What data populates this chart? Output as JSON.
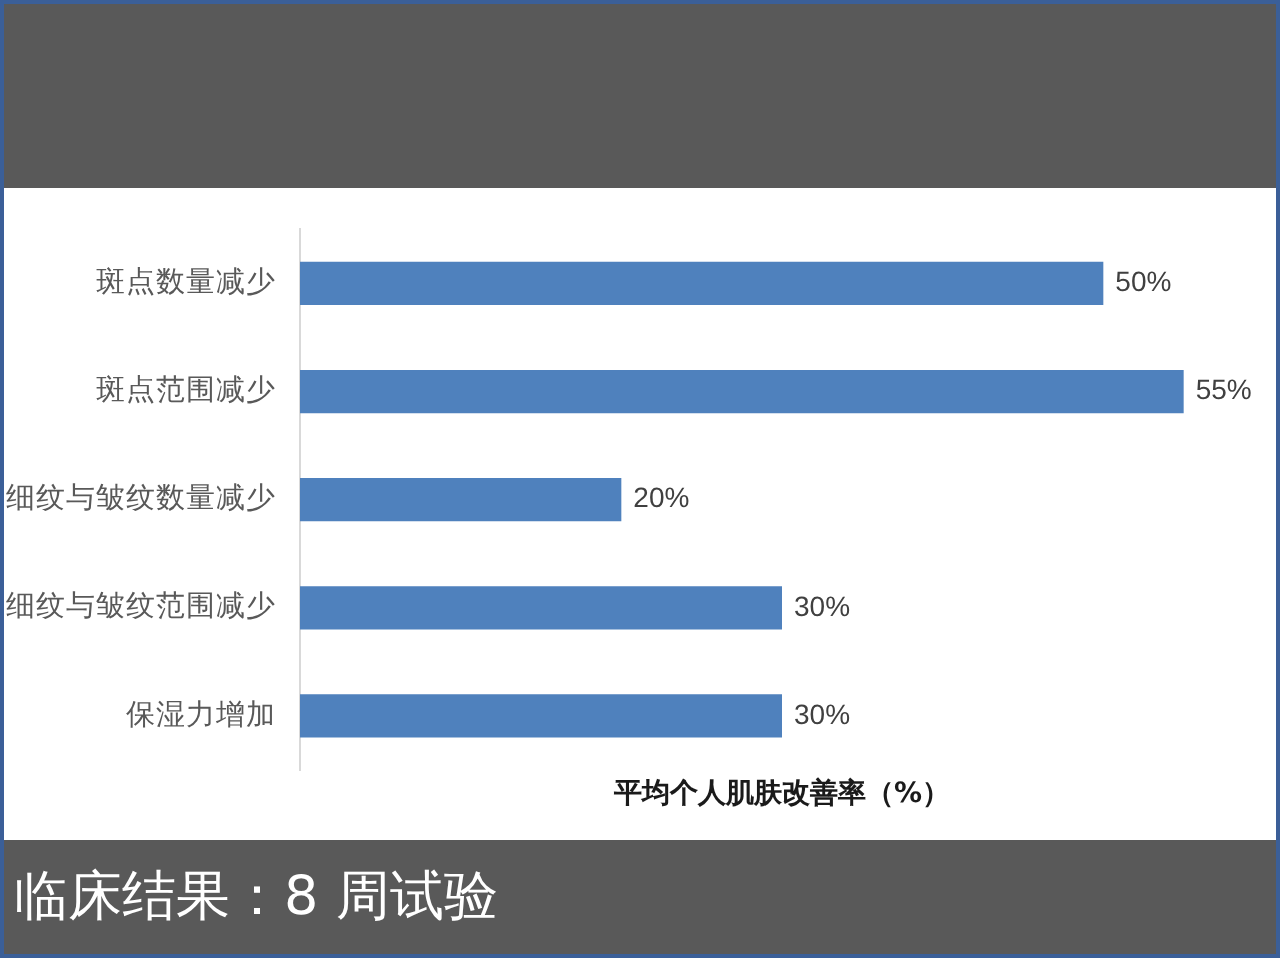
{
  "chart_data": {
    "type": "bar",
    "orientation": "horizontal",
    "title": "临床结果：8 周试验",
    "xlabel": "平均个人肌肤改善率（%）",
    "categories": [
      "斑点数量减少",
      "斑点范围减少",
      "细纹与皱纹数量减少",
      "细纹与皱纹范围减少",
      "保湿力增加"
    ],
    "values": [
      50,
      55,
      20,
      30,
      30
    ],
    "value_labels": [
      "50%",
      "55%",
      "20%",
      "30%",
      "30%"
    ],
    "color": "#4f81bd",
    "tick_labels": "y"
  }
}
